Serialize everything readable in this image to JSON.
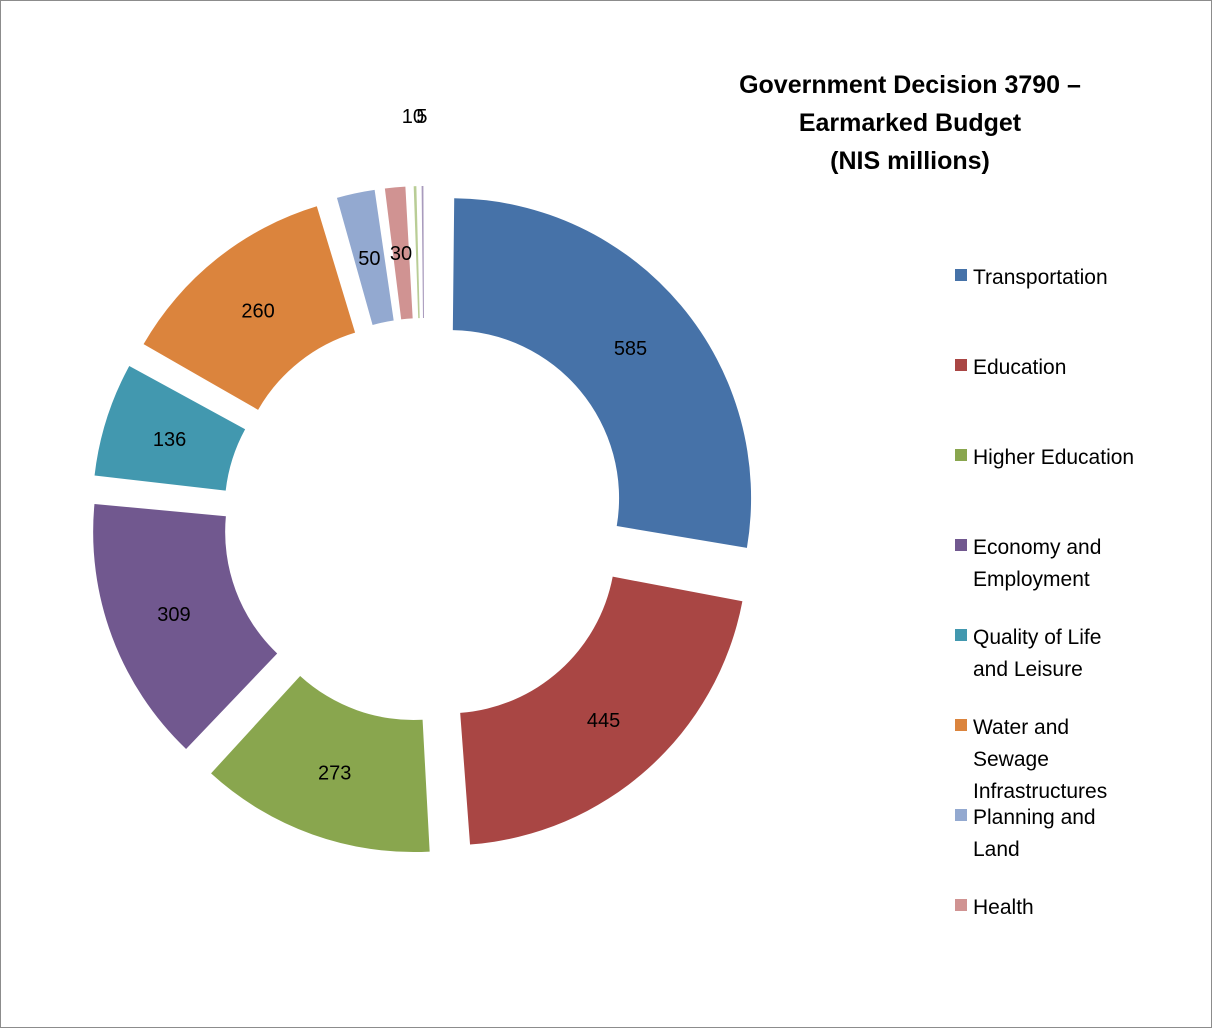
{
  "title": {
    "line1": "Government Decision 3790 –",
    "line2": "Earmarked Budget",
    "line3": "(NIS millions)"
  },
  "chart_data": {
    "type": "pie",
    "variant": "exploded-donut",
    "title": "Government Decision 3790 – Earmarked Budget (NIS millions)",
    "legend_position": "right",
    "slices": [
      {
        "label": "Transportation",
        "value": 585,
        "color": "#4672A8"
      },
      {
        "label": "Education",
        "value": 445,
        "color": "#A94644"
      },
      {
        "label": "Higher Education",
        "value": 273,
        "color": "#89A64E"
      },
      {
        "label": "Economy and Employment",
        "value": 309,
        "color": "#71588F"
      },
      {
        "label": "Quality of Life and Leisure",
        "value": 136,
        "color": "#4298AF"
      },
      {
        "label": "Water and Sewage Infrastructures",
        "value": 260,
        "color": "#DB843D"
      },
      {
        "label": "Planning and Land",
        "value": 50,
        "color": "#93A9D0"
      },
      {
        "label": "Health",
        "value": 30,
        "color": "#D09392"
      },
      {
        "label": "",
        "value": 10,
        "color": "#B9CD96"
      },
      {
        "label": "",
        "value": 5,
        "color": "#A99BBD"
      }
    ]
  }
}
